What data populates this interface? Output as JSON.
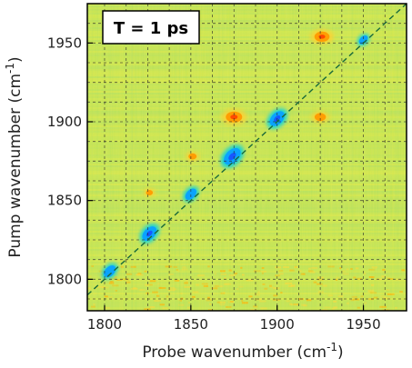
{
  "chart_data": {
    "type": "heatmap",
    "annotation": "T = 1 ps",
    "xlabel": "Probe wavenumber (cm",
    "xlabel_sup": "-1",
    "xlabel_end": ")",
    "ylabel": "Pump wavenumber (cm",
    "ylabel_sup": "-1",
    "ylabel_end": ")",
    "xlim": [
      1790,
      1975
    ],
    "ylim": [
      1780,
      1975
    ],
    "xticks": [
      1800,
      1850,
      1900,
      1950
    ],
    "yticks": [
      1800,
      1850,
      1900,
      1950
    ],
    "xtick_labels": [
      "1800",
      "1850",
      "1900",
      "1950"
    ],
    "ytick_labels": [
      "1800",
      "1850",
      "1900",
      "1950"
    ],
    "grid": "dashed",
    "diagonal": "dashed line where probe equals pump",
    "colorscale": [
      "#0050ff",
      "#00b4ff",
      "#00e0e0",
      "#b4e650",
      "#f0e640",
      "#ffa000",
      "#ff3000"
    ],
    "background_color": "#c8e650",
    "peaks": [
      {
        "x": 1803,
        "y": 1805,
        "sign": "negative",
        "intensity": 0.6
      },
      {
        "x": 1826,
        "y": 1829,
        "sign": "negative",
        "intensity": 0.8
      },
      {
        "x": 1850,
        "y": 1854,
        "sign": "negative",
        "intensity": 0.55
      },
      {
        "x": 1874,
        "y": 1878,
        "sign": "negative",
        "intensity": 1.0
      },
      {
        "x": 1900,
        "y": 1902,
        "sign": "negative",
        "intensity": 0.85
      },
      {
        "x": 1950,
        "y": 1952,
        "sign": "negative",
        "intensity": 0.35
      },
      {
        "x": 1926,
        "y": 1954,
        "sign": "positive",
        "intensity": 0.9
      },
      {
        "x": 1875,
        "y": 1903,
        "sign": "positive",
        "intensity": 1.0
      },
      {
        "x": 1925,
        "y": 1903,
        "sign": "positive",
        "intensity": 0.6
      },
      {
        "x": 1851,
        "y": 1878,
        "sign": "positive",
        "intensity": 0.35
      },
      {
        "x": 1826,
        "y": 1855,
        "sign": "positive",
        "intensity": 0.25
      }
    ]
  }
}
